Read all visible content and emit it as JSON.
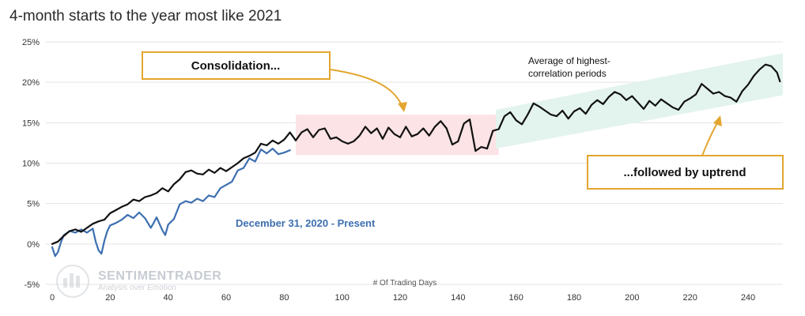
{
  "chart_data": {
    "type": "line",
    "title": "4-month starts to the year most like 2021",
    "xlabel": "# Of Trading Days",
    "ylabel": "",
    "xlim": [
      0,
      252
    ],
    "ylim": [
      -5,
      25
    ],
    "x_ticks": [
      0,
      20,
      40,
      60,
      80,
      100,
      120,
      140,
      160,
      180,
      200,
      220,
      240
    ],
    "y_ticks": [
      -5,
      0,
      5,
      10,
      15,
      20,
      25
    ],
    "y_tick_labels": [
      "-5%",
      "0%",
      "5%",
      "10%",
      "15%",
      "20%",
      "25%"
    ],
    "grid": "horizontal",
    "series": [
      {
        "name": "Average of highest-correlation periods",
        "color": "#111111",
        "points": [
          [
            0,
            0.0
          ],
          [
            2,
            0.3
          ],
          [
            4,
            1.0
          ],
          [
            6,
            1.6
          ],
          [
            8,
            1.8
          ],
          [
            10,
            1.5
          ],
          [
            12,
            2.0
          ],
          [
            14,
            2.5
          ],
          [
            16,
            2.8
          ],
          [
            18,
            3.0
          ],
          [
            20,
            3.8
          ],
          [
            22,
            4.2
          ],
          [
            24,
            4.6
          ],
          [
            26,
            4.9
          ],
          [
            28,
            5.5
          ],
          [
            30,
            5.3
          ],
          [
            32,
            5.8
          ],
          [
            34,
            6.0
          ],
          [
            36,
            6.3
          ],
          [
            38,
            6.9
          ],
          [
            40,
            6.5
          ],
          [
            42,
            7.4
          ],
          [
            44,
            8.0
          ],
          [
            46,
            8.9
          ],
          [
            48,
            9.1
          ],
          [
            50,
            8.7
          ],
          [
            52,
            8.6
          ],
          [
            54,
            9.2
          ],
          [
            56,
            8.8
          ],
          [
            58,
            9.4
          ],
          [
            60,
            9.0
          ],
          [
            62,
            9.5
          ],
          [
            64,
            10.0
          ],
          [
            66,
            10.6
          ],
          [
            68,
            10.9
          ],
          [
            70,
            11.3
          ],
          [
            72,
            12.4
          ],
          [
            74,
            12.2
          ],
          [
            76,
            12.8
          ],
          [
            78,
            12.4
          ],
          [
            80,
            12.9
          ],
          [
            82,
            13.8
          ],
          [
            84,
            12.8
          ],
          [
            86,
            13.8
          ],
          [
            88,
            14.2
          ],
          [
            90,
            13.2
          ],
          [
            92,
            14.1
          ],
          [
            94,
            14.3
          ],
          [
            96,
            13.0
          ],
          [
            98,
            13.2
          ],
          [
            100,
            12.7
          ],
          [
            102,
            12.4
          ],
          [
            104,
            12.7
          ],
          [
            106,
            13.4
          ],
          [
            108,
            14.5
          ],
          [
            110,
            13.7
          ],
          [
            112,
            14.3
          ],
          [
            114,
            13.0
          ],
          [
            116,
            14.4
          ],
          [
            118,
            13.6
          ],
          [
            120,
            13.2
          ],
          [
            122,
            14.5
          ],
          [
            124,
            13.3
          ],
          [
            126,
            13.6
          ],
          [
            128,
            14.3
          ],
          [
            130,
            13.4
          ],
          [
            132,
            14.5
          ],
          [
            134,
            15.2
          ],
          [
            136,
            14.3
          ],
          [
            138,
            12.3
          ],
          [
            140,
            12.7
          ],
          [
            142,
            14.9
          ],
          [
            144,
            15.4
          ],
          [
            146,
            11.5
          ],
          [
            148,
            12.0
          ],
          [
            150,
            11.8
          ],
          [
            152,
            14.0
          ],
          [
            154,
            14.2
          ],
          [
            156,
            15.8
          ],
          [
            158,
            16.3
          ],
          [
            160,
            15.3
          ],
          [
            162,
            14.8
          ],
          [
            164,
            16.0
          ],
          [
            166,
            17.4
          ],
          [
            168,
            17.0
          ],
          [
            170,
            16.5
          ],
          [
            172,
            16.0
          ],
          [
            174,
            15.8
          ],
          [
            176,
            16.5
          ],
          [
            178,
            15.5
          ],
          [
            180,
            16.4
          ],
          [
            182,
            16.8
          ],
          [
            184,
            16.1
          ],
          [
            186,
            17.2
          ],
          [
            188,
            17.8
          ],
          [
            190,
            17.3
          ],
          [
            192,
            18.2
          ],
          [
            194,
            18.8
          ],
          [
            196,
            18.5
          ],
          [
            198,
            17.8
          ],
          [
            200,
            18.3
          ],
          [
            202,
            17.5
          ],
          [
            204,
            16.7
          ],
          [
            206,
            17.7
          ],
          [
            208,
            17.1
          ],
          [
            210,
            17.9
          ],
          [
            212,
            17.4
          ],
          [
            214,
            16.9
          ],
          [
            216,
            16.6
          ],
          [
            218,
            17.6
          ],
          [
            220,
            18.0
          ],
          [
            222,
            18.5
          ],
          [
            224,
            19.8
          ],
          [
            226,
            19.2
          ],
          [
            228,
            18.6
          ],
          [
            230,
            18.8
          ],
          [
            232,
            18.3
          ],
          [
            234,
            18.1
          ],
          [
            236,
            17.6
          ],
          [
            238,
            18.9
          ],
          [
            240,
            19.7
          ],
          [
            242,
            20.8
          ],
          [
            244,
            21.6
          ],
          [
            246,
            22.2
          ],
          [
            248,
            22.0
          ],
          [
            250,
            21.2
          ],
          [
            251,
            20.1
          ]
        ]
      },
      {
        "name": "December 31, 2020 - Present",
        "color": "#3d6fb0",
        "points": [
          [
            0,
            -0.4
          ],
          [
            1,
            -1.5
          ],
          [
            2,
            -1.0
          ],
          [
            3,
            0.2
          ],
          [
            4,
            1.1
          ],
          [
            6,
            1.6
          ],
          [
            8,
            1.4
          ],
          [
            10,
            1.8
          ],
          [
            12,
            1.4
          ],
          [
            14,
            1.9
          ],
          [
            15,
            0.3
          ],
          [
            16,
            -0.8
          ],
          [
            17,
            -1.2
          ],
          [
            18,
            0.4
          ],
          [
            19,
            1.6
          ],
          [
            20,
            2.3
          ],
          [
            22,
            2.6
          ],
          [
            24,
            3.0
          ],
          [
            26,
            3.6
          ],
          [
            28,
            3.2
          ],
          [
            30,
            3.9
          ],
          [
            32,
            3.2
          ],
          [
            34,
            2.0
          ],
          [
            35,
            2.6
          ],
          [
            36,
            3.3
          ],
          [
            38,
            1.7
          ],
          [
            39,
            1.1
          ],
          [
            40,
            2.4
          ],
          [
            42,
            3.1
          ],
          [
            44,
            4.9
          ],
          [
            46,
            5.3
          ],
          [
            48,
            5.1
          ],
          [
            50,
            5.6
          ],
          [
            52,
            5.3
          ],
          [
            54,
            6.0
          ],
          [
            56,
            5.8
          ],
          [
            58,
            6.9
          ],
          [
            60,
            7.3
          ],
          [
            62,
            7.7
          ],
          [
            64,
            9.1
          ],
          [
            66,
            9.4
          ],
          [
            68,
            10.6
          ],
          [
            70,
            10.2
          ],
          [
            72,
            11.7
          ],
          [
            74,
            11.2
          ],
          [
            76,
            11.8
          ],
          [
            78,
            11.1
          ],
          [
            80,
            11.3
          ],
          [
            82,
            11.6
          ]
        ]
      }
    ],
    "annotations": {
      "consolidation": {
        "text": "Consolidation...",
        "x_range": [
          84,
          154
        ],
        "y_range": [
          11,
          16
        ]
      },
      "uptrend": {
        "text": "...followed by uptrend"
      },
      "avg_label": {
        "lines": [
          "Average of highest-",
          "correlation periods"
        ]
      },
      "recent_label": {
        "text": "December 31, 2020 - Present"
      }
    }
  },
  "watermark": {
    "brand": "SENTIMENTRADER",
    "tagline": "Analysis over Emotion"
  },
  "colors": {
    "avg_line": "#111111",
    "recent_line": "#3d6fb0",
    "consolidation_fill": "#fce3e5",
    "uptrend_fill": "#e3f3ee",
    "callout_border": "#e3a52f",
    "grid": "#e3e3e3"
  }
}
